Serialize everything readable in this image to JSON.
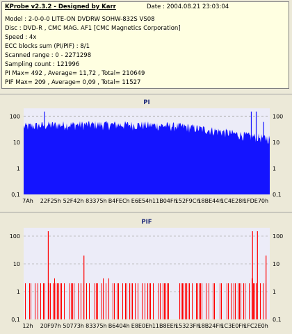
{
  "header": {
    "title": "KProbe v2.3.2 - Designed by Karr",
    "date": "Date : 2004.08.21 23:03:04",
    "lines": [
      "Model : 2-0-0-0 LITE-ON DVDRW SOHW-832S  VS08",
      "Disc : DVD-R , CMC MAG. AF1 [CMC Magnetics Corporation]",
      "Speed : 4x",
      "ECC blocks sum (PI/PIF) : 8/1",
      "Scanned range : 0 - 2271298",
      "Sampling count : 121996",
      "PI Max= 492 , Average= 11,72 , Total= 210649",
      "PIF Max= 209 , Average= 0,09 , Total= 11527"
    ]
  },
  "colors": {
    "plot_bg": "#ececf8",
    "pi_fill": "#1414ff",
    "pif_bar": "#ff0000",
    "grid": "#b0b0b0",
    "panel_bg": "#ece9d8"
  },
  "chart_data": [
    {
      "type": "area",
      "title": "PI",
      "yscale": "log",
      "ylim": [
        0.1,
        200
      ],
      "yticks": [
        "100",
        "10",
        "1",
        "0,1"
      ],
      "xticks": [
        "7Ah",
        "22F25h",
        "52F42h",
        "83375h",
        "B4FECh",
        "E6E54h",
        "11B04Fh",
        "152F9Ch",
        "18BE44h",
        "1C4E28h",
        "1FDE70h"
      ],
      "baseline_profile": {
        "x": [
          0,
          0.1,
          0.3,
          0.5,
          0.65,
          0.8,
          0.92,
          1.0
        ],
        "y": [
          40,
          46,
          48,
          46,
          40,
          26,
          17,
          14
        ]
      },
      "spikes": [
        {
          "x": 0.085,
          "y": 150
        },
        {
          "x": 0.925,
          "y": 150
        },
        {
          "x": 0.945,
          "y": 150
        },
        {
          "x": 0.975,
          "y": 60
        }
      ]
    },
    {
      "type": "bar",
      "title": "PIF",
      "yscale": "log",
      "ylim": [
        0.1,
        200
      ],
      "yticks": [
        "100",
        "10",
        "1",
        "0,1"
      ],
      "xticks": [
        "12h",
        "20F97h",
        "50773h",
        "83375h",
        "B6404h",
        "E8E0Eh",
        "11B8EEh",
        "15323Fh",
        "18B24Fh",
        "1C3E0Fh",
        "1FC2E0h"
      ],
      "spikes": [
        {
          "x": 0.1,
          "y": 150
        },
        {
          "x": 0.245,
          "y": 20
        },
        {
          "x": 0.93,
          "y": 150
        },
        {
          "x": 0.95,
          "y": 150
        },
        {
          "x": 0.985,
          "y": 20
        }
      ],
      "common_level": 2
    }
  ]
}
